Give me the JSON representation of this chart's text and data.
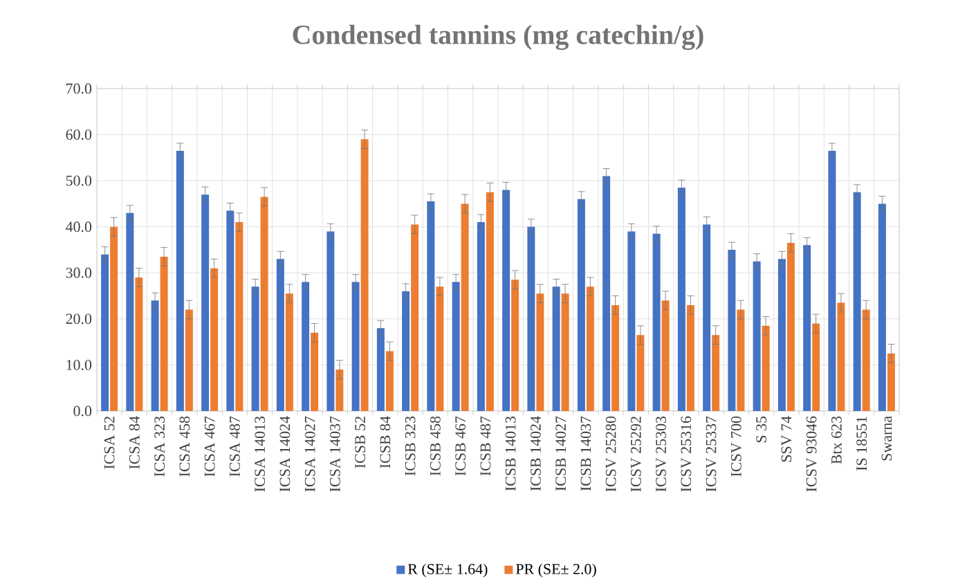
{
  "chart_data": {
    "type": "bar",
    "title": "Condensed tannins (mg catechin/g)",
    "categories": [
      "ICSA 52",
      "ICSA 84",
      "ICSA 323",
      "ICSA 458",
      "ICSA 467",
      "ICSA 487",
      "ICSA 14013",
      "ICSA 14024",
      "ICSA 14027",
      "ICSA 14037",
      "ICSB 52",
      "ICSB 84",
      "ICSB 323",
      "ICSB 458",
      "ICSB 467",
      "ICSB 487",
      "ICSB 14013",
      "ICSB 14024",
      "ICSB 14027",
      "ICSB 14037",
      "ICSV 25280",
      "ICSV 25292",
      "ICSV 25303",
      "ICSV 25316",
      "ICSV 25337",
      "ICSV 700",
      "S 35",
      "SSV 74",
      "ICSV 93046",
      "Btx 623",
      "IS 18551",
      "Swarna"
    ],
    "series": [
      {
        "name": "R (SE± 1.64)",
        "color": "#4472c4",
        "values": [
          34,
          43,
          24,
          56.5,
          47,
          43.5,
          27,
          33,
          28,
          39,
          28,
          18,
          26,
          45.5,
          28,
          41,
          48,
          40,
          27,
          46,
          51,
          39,
          38.5,
          48.5,
          40.5,
          35,
          32.5,
          33,
          36,
          56.5,
          47.5,
          45
        ],
        "errors": [
          1.64,
          1.64,
          1.64,
          1.64,
          1.64,
          1.64,
          1.64,
          1.64,
          1.64,
          1.64,
          1.64,
          1.64,
          1.64,
          1.64,
          1.64,
          1.64,
          1.64,
          1.64,
          1.64,
          1.64,
          1.64,
          1.64,
          1.64,
          1.64,
          1.64,
          1.64,
          1.64,
          1.64,
          1.64,
          1.64,
          1.64,
          1.64
        ]
      },
      {
        "name": "PR (SE± 2.0)",
        "color": "#ed7d31",
        "values": [
          40,
          29,
          33.5,
          22,
          31,
          41,
          46.5,
          25.5,
          17,
          9,
          59,
          13,
          40.5,
          27,
          45,
          47.5,
          28.5,
          25.5,
          25.5,
          27,
          23,
          16.5,
          24,
          23,
          16.5,
          22,
          18.5,
          36.5,
          19,
          23.5,
          22,
          12.5
        ],
        "errors": [
          2.0,
          2.0,
          2.0,
          2.0,
          2.0,
          2.0,
          2.0,
          2.0,
          2.0,
          2.0,
          2.0,
          2.0,
          2.0,
          2.0,
          2.0,
          2.0,
          2.0,
          2.0,
          2.0,
          2.0,
          2.0,
          2.0,
          2.0,
          2.0,
          2.0,
          2.0,
          2.0,
          2.0,
          2.0,
          2.0,
          2.0,
          2.0
        ]
      }
    ],
    "ylim": [
      0,
      70
    ],
    "yticks": [
      {
        "value": 0,
        "label": "0.0"
      },
      {
        "value": 10,
        "label": "10.0"
      },
      {
        "value": 20,
        "label": "20.0"
      },
      {
        "value": 30,
        "label": "30.0"
      },
      {
        "value": 40,
        "label": "40.0"
      },
      {
        "value": 50,
        "label": "50.0"
      },
      {
        "value": 60,
        "label": "60.0"
      },
      {
        "value": 70,
        "label": "70.0"
      }
    ],
    "grid": true,
    "legend": "bottom"
  }
}
